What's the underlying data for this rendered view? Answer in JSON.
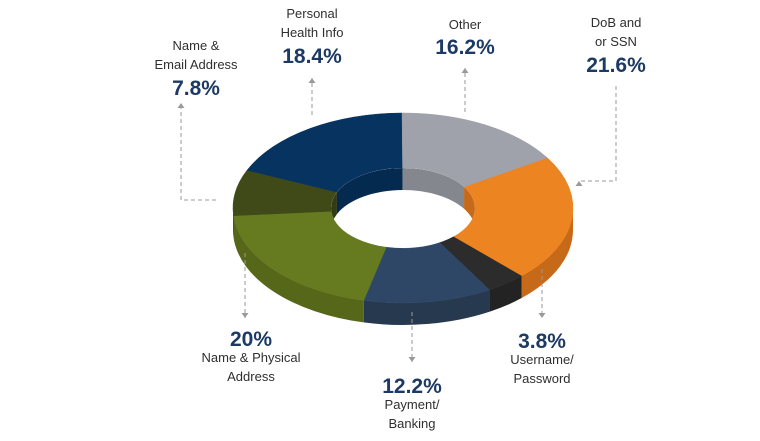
{
  "chart_data": {
    "type": "pie",
    "variant": "3d-donut",
    "title": "",
    "slices": [
      {
        "label": "DoB and or SSN",
        "lines": [
          "DoB and",
          "or SSN"
        ],
        "value": 21.6,
        "display": "21.6%",
        "color": "#ec8422",
        "side": "#c66918"
      },
      {
        "label": "Username/Password",
        "lines": [
          "Username/",
          "Password"
        ],
        "value": 3.8,
        "display": "3.8%",
        "color": "#2c2c2c",
        "side": "#232323"
      },
      {
        "label": "Payment/Banking",
        "lines": [
          "Payment/",
          "Banking"
        ],
        "value": 12.2,
        "display": "12.2%",
        "color": "#2f4766",
        "side": "#26394f"
      },
      {
        "label": "Name & Physical Address",
        "lines": [
          "Name & Physical",
          "Address"
        ],
        "value": 20,
        "display": "20%",
        "color": "#667a1f",
        "side": "#56671a"
      },
      {
        "label": "Name & Email Address",
        "lines": [
          "Name &",
          "Email Address"
        ],
        "value": 7.8,
        "display": "7.8%",
        "color": "#3f4a18",
        "side": "#333c14"
      },
      {
        "label": "Personal Health Info",
        "lines": [
          "Personal",
          "Health Info"
        ],
        "value": 18.4,
        "display": "18.4%",
        "color": "#073360",
        "side": "#052a4f"
      },
      {
        "label": "Other",
        "lines": [
          "Other"
        ],
        "value": 16.2,
        "display": "16.2%",
        "color": "#9fa2aa",
        "side": "#85878e"
      }
    ]
  }
}
